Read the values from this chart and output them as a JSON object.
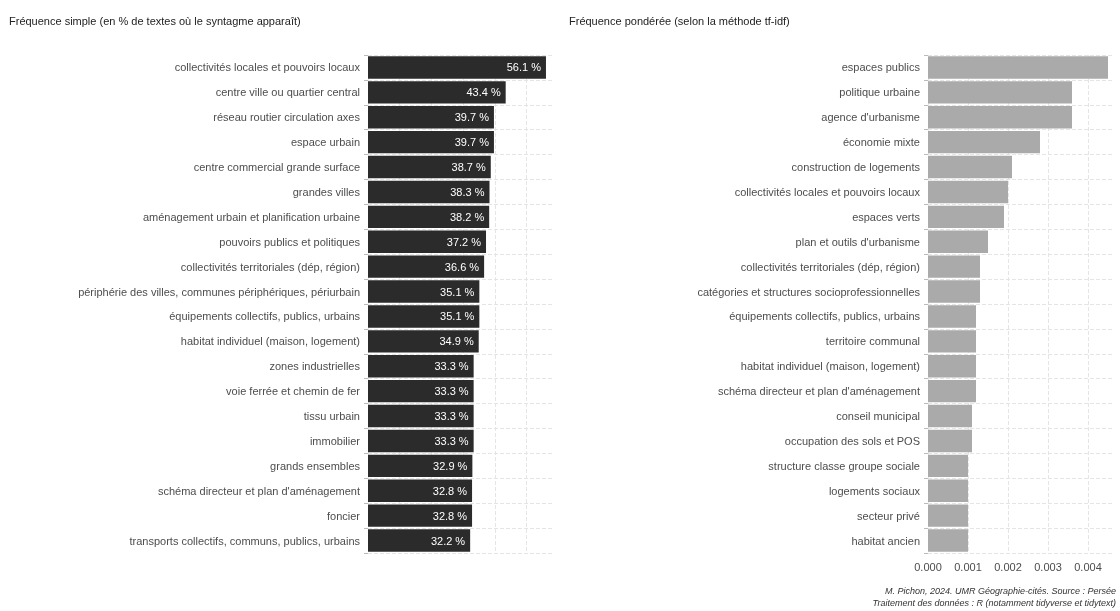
{
  "chart_data": [
    {
      "type": "bar",
      "orientation": "horizontal",
      "title": "Fréquence simple (en % de textes où le syntagme apparaît)",
      "categories": [
        "collectivités locales et pouvoirs locaux",
        "centre ville ou quartier central",
        "réseau routier circulation axes",
        "espace urbain",
        "centre commercial grande surface",
        "grandes villes",
        "aménagement urbain et planification urbaine",
        "pouvoirs publics et politiques",
        "collectivités territoriales (dép, région)",
        "périphérie des villes, communes périphériques, périurbain",
        "équipements collectifs, publics, urbains",
        "habitat individuel (maison, logement)",
        "zones industrielles",
        "voie ferrée et chemin de fer",
        "tissu urbain",
        "immobilier",
        "grands ensembles",
        "schéma directeur et plan d'aménagement",
        "foncier",
        "transports collectifs, communs, publics, urbains"
      ],
      "values": [
        56.1,
        43.4,
        39.7,
        39.7,
        38.7,
        38.3,
        38.2,
        37.2,
        36.6,
        35.1,
        35.1,
        34.9,
        33.3,
        33.3,
        33.3,
        33.3,
        32.9,
        32.8,
        32.8,
        32.2
      ],
      "value_labels": [
        "56.1 %",
        "43.4 %",
        "39.7 %",
        "39.7 %",
        "38.7 %",
        "38.3 %",
        "38.2 %",
        "37.2 %",
        "36.6 %",
        "35.1 %",
        "35.1 %",
        "34.9 %",
        "33.3 %",
        "33.3 %",
        "33.3 %",
        "33.3 %",
        "32.9 %",
        "32.8 %",
        "32.8 %",
        "32.2 %"
      ],
      "color": "#2b2b2b",
      "xlim": [
        0,
        58
      ],
      "xticks": [
        {
          "value": 0,
          "label": null
        },
        {
          "value": 10,
          "label": null
        },
        {
          "value": 20,
          "label": null
        },
        {
          "value": 30,
          "label": null
        },
        {
          "value": 40,
          "label": null
        },
        {
          "value": 50,
          "label": null
        }
      ],
      "grid": true,
      "tick_labels": "y"
    },
    {
      "type": "bar",
      "orientation": "horizontal",
      "title": "Fréquence pondérée (selon la méthode tf-idf)",
      "categories": [
        "espaces publics",
        "politique urbaine",
        "agence d'urbanisme",
        "économie mixte",
        "construction de logements",
        "collectivités locales et pouvoirs locaux",
        "espaces verts",
        "plan et outils d'urbanisme",
        "collectivités territoriales (dép, région)",
        "catégories et structures socioprofessionnelles",
        "équipements collectifs, publics, urbains",
        "territoire communal",
        "habitat individuel (maison, logement)",
        "schéma directeur et plan d'aménagement",
        "conseil municipal",
        "occupation des sols et POS",
        "structure classe groupe sociale",
        "logements sociaux",
        "secteur privé",
        "habitat ancien"
      ],
      "values": [
        0.0045,
        0.0036,
        0.0036,
        0.0028,
        0.0021,
        0.002,
        0.0019,
        0.0015,
        0.0013,
        0.0013,
        0.0012,
        0.0012,
        0.0012,
        0.0012,
        0.0011,
        0.0011,
        0.001,
        0.001,
        0.001,
        0.001
      ],
      "color": "#aaaaaa",
      "xlim": [
        0,
        0.0046
      ],
      "xticks": [
        {
          "value": 0,
          "label": "0.000"
        },
        {
          "value": 0.001,
          "label": "0.001"
        },
        {
          "value": 0.002,
          "label": "0.002"
        },
        {
          "value": 0.003,
          "label": "0.003"
        },
        {
          "value": 0.004,
          "label": "0.004"
        }
      ],
      "grid": true,
      "annotations": [
        "M. Pichon, 2024. UMR Géographie-cités. Source : Persée",
        "Traitement des données : R (notamment tidyverse et tidytext)"
      ]
    }
  ]
}
